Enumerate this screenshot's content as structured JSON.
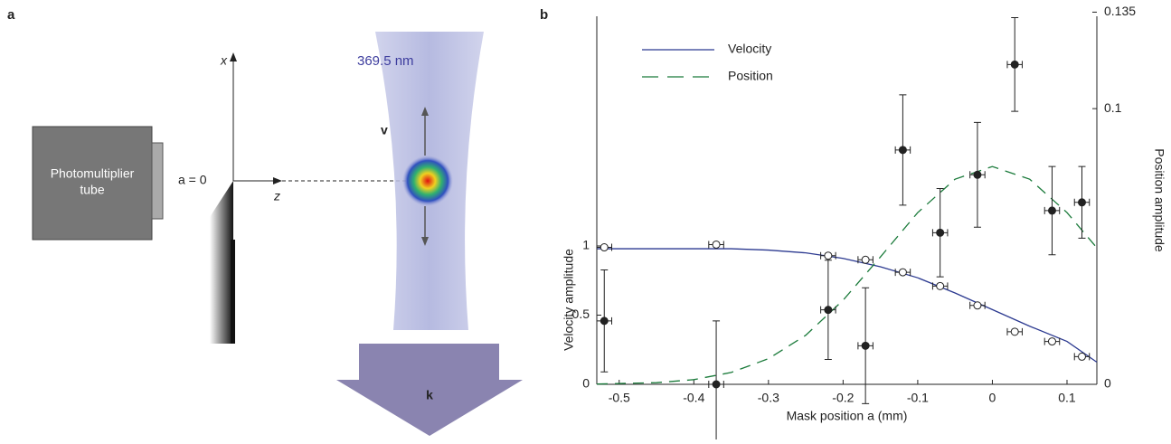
{
  "diagram": {
    "panel_label": "a",
    "pmt_label_lines": [
      "Photomultiplier",
      "tube"
    ],
    "axis_x": "x",
    "axis_z": "z",
    "origin_label": "a = 0",
    "wavelength": "369.5 nm",
    "velocity_label": "v",
    "wavevector_label": "k"
  },
  "chart_data": {
    "type": "line",
    "panel_label": "b",
    "xlabel": "Mask position a (mm)",
    "ylabel": "Velocity amplitude",
    "y2label": "Position amplitude",
    "xlim": [
      -0.53,
      0.14
    ],
    "ylim": [
      0,
      2.66
    ],
    "y2lim": [
      0,
      0.1335
    ],
    "xticks": [
      -0.5,
      -0.4,
      -0.3,
      -0.2,
      -0.1,
      0,
      0.1
    ],
    "yticks": [
      0,
      0.5,
      1
    ],
    "y2ticks": [
      0,
      0.1,
      0.135
    ],
    "legend": "upper left",
    "series": [
      {
        "name": "Velocity",
        "color": "#2b3990",
        "style": "solid",
        "x": [
          -0.53,
          -0.45,
          -0.4,
          -0.35,
          -0.3,
          -0.25,
          -0.2,
          -0.15,
          -0.1,
          -0.05,
          0,
          0.05,
          0.1,
          0.14
        ],
        "values": [
          0.98,
          0.98,
          0.98,
          0.98,
          0.97,
          0.95,
          0.91,
          0.85,
          0.77,
          0.66,
          0.54,
          0.42,
          0.31,
          0.16
        ]
      },
      {
        "name": "Position",
        "color": "#1a7a3a",
        "style": "dashed",
        "axis": "y2",
        "x": [
          -0.53,
          -0.45,
          -0.4,
          -0.35,
          -0.3,
          -0.25,
          -0.2,
          -0.15,
          -0.1,
          -0.05,
          0,
          0.05,
          0.1,
          0.14
        ],
        "values": [
          0.0001,
          0.0006,
          0.0017,
          0.0043,
          0.0093,
          0.0178,
          0.0305,
          0.0462,
          0.0623,
          0.0744,
          0.079,
          0.0744,
          0.0623,
          0.0495
        ]
      }
    ],
    "points": [
      {
        "marker": "open",
        "x": [
          -0.52,
          -0.37,
          -0.22,
          -0.17,
          -0.12,
          -0.07,
          -0.02,
          0.03,
          0.08,
          0.12
        ],
        "values": [
          0.99,
          1.01,
          0.93,
          0.9,
          0.81,
          0.71,
          0.57,
          0.38,
          0.31,
          0.2
        ],
        "xerr": 0.01
      },
      {
        "marker": "filled",
        "axis": "y2",
        "x": [
          -0.52,
          -0.37,
          -0.22,
          -0.17,
          -0.12,
          -0.07,
          -0.02,
          0.03,
          0.08,
          0.12
        ],
        "values": [
          0.023,
          0,
          0.027,
          0.014,
          0.085,
          0.055,
          0.076,
          0.116,
          0.063,
          0.066
        ],
        "xerr": 0.01,
        "yerr": [
          0.0185,
          0.023,
          0.018,
          0.021,
          0.02,
          0.016,
          0.019,
          0.017,
          0.016,
          0.013
        ]
      }
    ]
  }
}
